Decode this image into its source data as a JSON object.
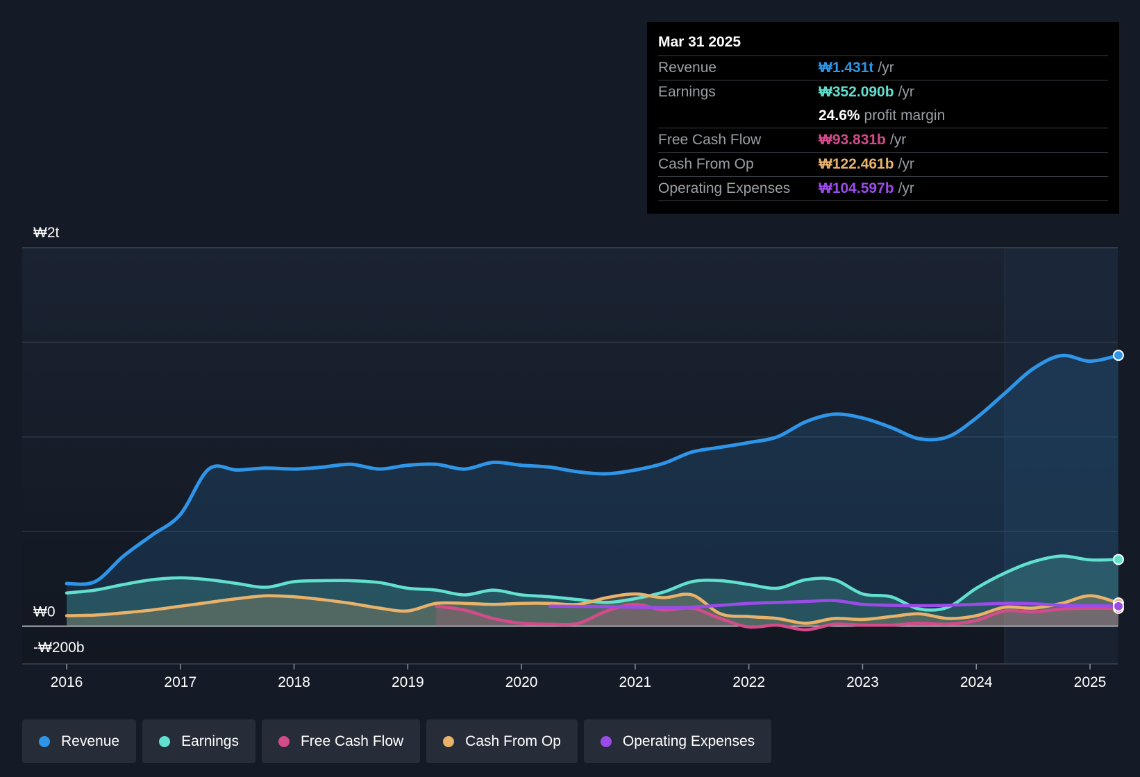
{
  "chart_data": {
    "type": "area",
    "y_unit": "₩ billions",
    "ylim": [
      -200,
      2000
    ],
    "y_ticks": [
      {
        "value": 2000,
        "label": "₩2t"
      },
      {
        "value": 0,
        "label": "₩0"
      },
      {
        "value": -200,
        "label": "-₩200b"
      }
    ],
    "x_ticks": [
      {
        "value": 2016,
        "label": "2016"
      },
      {
        "value": 2017,
        "label": "2017"
      },
      {
        "value": 2018,
        "label": "2018"
      },
      {
        "value": 2019,
        "label": "2019"
      },
      {
        "value": 2020,
        "label": "2020"
      },
      {
        "value": 2021,
        "label": "2021"
      },
      {
        "value": 2022,
        "label": "2022"
      },
      {
        "value": 2023,
        "label": "2023"
      },
      {
        "value": 2024,
        "label": "2024"
      },
      {
        "value": 2025,
        "label": "2025"
      }
    ],
    "xlim": [
      2015.61,
      2025.25
    ],
    "forecast_start": 2024.25,
    "series": [
      {
        "name": "Revenue",
        "color": "#2f95e8",
        "fill": true,
        "points": [
          [
            2016,
            225
          ],
          [
            2016.25,
            235
          ],
          [
            2016.5,
            370
          ],
          [
            2016.75,
            480
          ],
          [
            2017,
            590
          ],
          [
            2017.25,
            830
          ],
          [
            2017.5,
            825
          ],
          [
            2017.75,
            835
          ],
          [
            2018,
            830
          ],
          [
            2018.25,
            840
          ],
          [
            2018.5,
            855
          ],
          [
            2018.75,
            830
          ],
          [
            2019,
            850
          ],
          [
            2019.25,
            855
          ],
          [
            2019.5,
            830
          ],
          [
            2019.75,
            865
          ],
          [
            2020,
            850
          ],
          [
            2020.25,
            840
          ],
          [
            2020.5,
            815
          ],
          [
            2020.75,
            805
          ],
          [
            2021,
            825
          ],
          [
            2021.25,
            860
          ],
          [
            2021.5,
            920
          ],
          [
            2021.75,
            945
          ],
          [
            2022,
            970
          ],
          [
            2022.25,
            1000
          ],
          [
            2022.5,
            1080
          ],
          [
            2022.75,
            1120
          ],
          [
            2023,
            1100
          ],
          [
            2023.25,
            1050
          ],
          [
            2023.5,
            990
          ],
          [
            2023.75,
            1000
          ],
          [
            2024,
            1100
          ],
          [
            2024.25,
            1230
          ],
          [
            2024.5,
            1360
          ],
          [
            2024.75,
            1430
          ],
          [
            2025,
            1400
          ],
          [
            2025.25,
            1431
          ]
        ]
      },
      {
        "name": "Earnings",
        "color": "#62e0cf",
        "fill": true,
        "points": [
          [
            2016,
            175
          ],
          [
            2016.25,
            190
          ],
          [
            2016.5,
            220
          ],
          [
            2016.75,
            245
          ],
          [
            2017,
            255
          ],
          [
            2017.25,
            245
          ],
          [
            2017.5,
            225
          ],
          [
            2017.75,
            205
          ],
          [
            2018,
            235
          ],
          [
            2018.25,
            240
          ],
          [
            2018.5,
            240
          ],
          [
            2018.75,
            230
          ],
          [
            2019,
            200
          ],
          [
            2019.25,
            190
          ],
          [
            2019.5,
            165
          ],
          [
            2019.75,
            190
          ],
          [
            2020,
            165
          ],
          [
            2020.25,
            155
          ],
          [
            2020.5,
            140
          ],
          [
            2020.75,
            125
          ],
          [
            2021,
            145
          ],
          [
            2021.25,
            180
          ],
          [
            2021.5,
            235
          ],
          [
            2021.75,
            240
          ],
          [
            2022,
            220
          ],
          [
            2022.25,
            200
          ],
          [
            2022.5,
            245
          ],
          [
            2022.75,
            245
          ],
          [
            2023,
            170
          ],
          [
            2023.25,
            155
          ],
          [
            2023.5,
            90
          ],
          [
            2023.75,
            100
          ],
          [
            2024,
            200
          ],
          [
            2024.25,
            280
          ],
          [
            2024.5,
            340
          ],
          [
            2024.75,
            370
          ],
          [
            2025,
            350
          ],
          [
            2025.25,
            352
          ]
        ]
      },
      {
        "name": "Free Cash Flow",
        "color": "#d44b8b",
        "fill": true,
        "points": [
          [
            2019.25,
            105
          ],
          [
            2019.5,
            85
          ],
          [
            2019.75,
            40
          ],
          [
            2020,
            15
          ],
          [
            2020.25,
            10
          ],
          [
            2020.5,
            15
          ],
          [
            2020.75,
            80
          ],
          [
            2021,
            115
          ],
          [
            2021.25,
            85
          ],
          [
            2021.5,
            95
          ],
          [
            2021.75,
            40
          ],
          [
            2022,
            -5
          ],
          [
            2022.25,
            5
          ],
          [
            2022.5,
            -20
          ],
          [
            2022.75,
            10
          ],
          [
            2023,
            5
          ],
          [
            2023.25,
            5
          ],
          [
            2023.5,
            15
          ],
          [
            2023.75,
            10
          ],
          [
            2024,
            30
          ],
          [
            2024.25,
            80
          ],
          [
            2024.5,
            75
          ],
          [
            2024.75,
            90
          ],
          [
            2025,
            94
          ],
          [
            2025.25,
            94
          ]
        ]
      },
      {
        "name": "Cash From Op",
        "color": "#e8b26a",
        "fill": true,
        "points": [
          [
            2016,
            55
          ],
          [
            2016.25,
            58
          ],
          [
            2016.5,
            70
          ],
          [
            2016.75,
            85
          ],
          [
            2017,
            105
          ],
          [
            2017.25,
            125
          ],
          [
            2017.5,
            145
          ],
          [
            2017.75,
            160
          ],
          [
            2018,
            155
          ],
          [
            2018.25,
            140
          ],
          [
            2018.5,
            120
          ],
          [
            2018.75,
            95
          ],
          [
            2019,
            80
          ],
          [
            2019.25,
            120
          ],
          [
            2019.5,
            120
          ],
          [
            2019.75,
            115
          ],
          [
            2020,
            120
          ],
          [
            2020.25,
            120
          ],
          [
            2020.5,
            115
          ],
          [
            2020.75,
            150
          ],
          [
            2021,
            170
          ],
          [
            2021.25,
            150
          ],
          [
            2021.5,
            165
          ],
          [
            2021.75,
            65
          ],
          [
            2022,
            50
          ],
          [
            2022.25,
            40
          ],
          [
            2022.5,
            15
          ],
          [
            2022.75,
            40
          ],
          [
            2023,
            35
          ],
          [
            2023.25,
            50
          ],
          [
            2023.5,
            65
          ],
          [
            2023.75,
            40
          ],
          [
            2024,
            55
          ],
          [
            2024.25,
            100
          ],
          [
            2024.5,
            95
          ],
          [
            2024.75,
            120
          ],
          [
            2025,
            160
          ],
          [
            2025.25,
            122
          ]
        ]
      },
      {
        "name": "Operating Expenses",
        "color": "#9b4be8",
        "fill": false,
        "points": [
          [
            2020.25,
            105
          ],
          [
            2020.5,
            104
          ],
          [
            2020.75,
            103
          ],
          [
            2021,
            100
          ],
          [
            2021.25,
            98
          ],
          [
            2021.5,
            100
          ],
          [
            2021.75,
            110
          ],
          [
            2022,
            120
          ],
          [
            2022.25,
            125
          ],
          [
            2022.5,
            130
          ],
          [
            2022.75,
            135
          ],
          [
            2023,
            115
          ],
          [
            2023.25,
            110
          ],
          [
            2023.5,
            108
          ],
          [
            2023.75,
            110
          ],
          [
            2024,
            115
          ],
          [
            2024.25,
            120
          ],
          [
            2024.5,
            118
          ],
          [
            2024.75,
            110
          ],
          [
            2025,
            108
          ],
          [
            2025.25,
            105
          ]
        ]
      }
    ]
  },
  "tooltip": {
    "date": "Mar 31 2025",
    "rows": [
      {
        "label": "Revenue",
        "value": "₩1.431t",
        "unit": "/yr",
        "color": "#2f95e8"
      },
      {
        "label": "Earnings",
        "value": "₩352.090b",
        "unit": "/yr",
        "color": "#62e0cf"
      },
      {
        "label": "",
        "value": "24.6%",
        "unit": "profit margin",
        "color": "#ffffff"
      },
      {
        "label": "Free Cash Flow",
        "value": "₩93.831b",
        "unit": "/yr",
        "color": "#d44b8b"
      },
      {
        "label": "Cash From Op",
        "value": "₩122.461b",
        "unit": "/yr",
        "color": "#e8b26a"
      },
      {
        "label": "Operating Expenses",
        "value": "₩104.597b",
        "unit": "/yr",
        "color": "#9b4be8"
      }
    ]
  },
  "legend": [
    {
      "label": "Revenue",
      "color": "#2f95e8"
    },
    {
      "label": "Earnings",
      "color": "#62e0cf"
    },
    {
      "label": "Free Cash Flow",
      "color": "#d44b8b"
    },
    {
      "label": "Cash From Op",
      "color": "#e8b26a"
    },
    {
      "label": "Operating Expenses",
      "color": "#9b4be8"
    }
  ]
}
